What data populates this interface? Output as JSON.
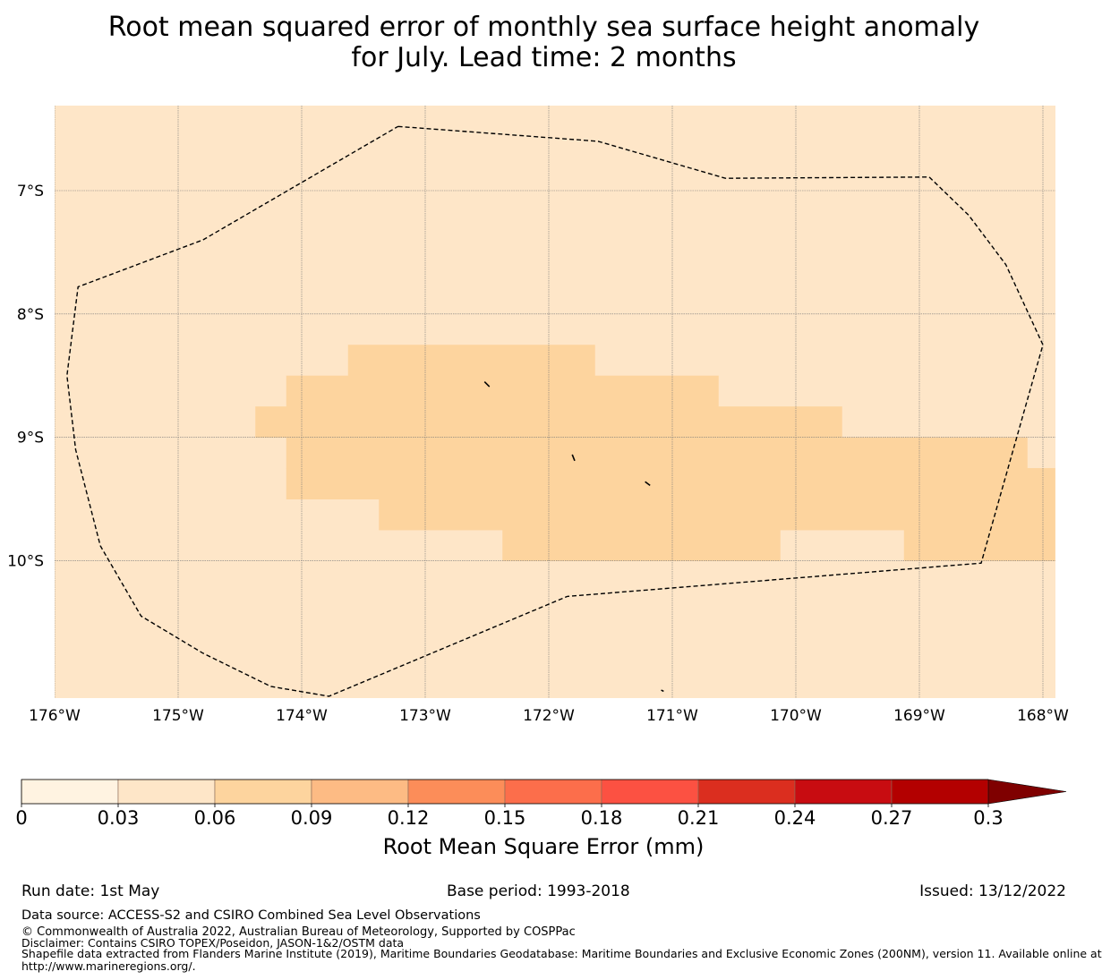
{
  "title": {
    "line1": "Root mean squared error of monthly sea surface height anomaly",
    "line2": "for July. Lead time: 2 months"
  },
  "map": {
    "lon_range": [
      -176,
      -167.9
    ],
    "lat_range": [
      -11.15,
      -6.3
    ],
    "x_ticks": [
      {
        "value": -176,
        "label": "176°W"
      },
      {
        "value": -175,
        "label": "175°W"
      },
      {
        "value": -174,
        "label": "174°W"
      },
      {
        "value": -173,
        "label": "173°W"
      },
      {
        "value": -172,
        "label": "172°W"
      },
      {
        "value": -171,
        "label": "171°W"
      },
      {
        "value": -170,
        "label": "170°W"
      },
      {
        "value": -169,
        "label": "169°W"
      },
      {
        "value": -168,
        "label": "168°W"
      }
    ],
    "y_ticks": [
      {
        "value": -7,
        "label": "7°S"
      },
      {
        "value": -8,
        "label": "8°S"
      },
      {
        "value": -9,
        "label": "9°S"
      },
      {
        "value": -10,
        "label": "10°S"
      }
    ],
    "background_color": "#fee6c8",
    "band_color": "#fdd49e",
    "cell_size_deg": 0.25,
    "band_rows": [
      {
        "lat_top": -8.25,
        "lat_bottom": -8.5,
        "lon_from": -173.625,
        "lon_to": -171.625
      },
      {
        "lat_top": -8.5,
        "lat_bottom": -8.75,
        "lon_from": -174.125,
        "lon_to": -170.625
      },
      {
        "lat_top": -8.75,
        "lat_bottom": -9.0,
        "lon_from": -174.375,
        "lon_to": -169.625
      },
      {
        "lat_top": -9.0,
        "lat_bottom": -9.25,
        "lon_from": -174.125,
        "lon_to": -168.125
      },
      {
        "lat_top": -9.25,
        "lat_bottom": -9.5,
        "lon_from": -174.125,
        "lon_to": -167.9
      },
      {
        "lat_top": -9.5,
        "lat_bottom": -9.75,
        "lon_from": -173.375,
        "lon_to": -167.9
      },
      {
        "lat_top": -9.75,
        "lat_bottom": -10.0,
        "lon_from": -172.375,
        "lon_to": -170.125
      },
      {
        "lat_top": -9.75,
        "lat_bottom": -10.0,
        "lon_from": -169.125,
        "lon_to": -167.9
      }
    ],
    "eez_boundary": [
      [
        -173.22,
        -6.48
      ],
      [
        -171.6,
        -6.6
      ],
      [
        -170.57,
        -6.9
      ],
      [
        -168.92,
        -6.89
      ],
      [
        -168.6,
        -7.2
      ],
      [
        -168.3,
        -7.6
      ],
      [
        -168.0,
        -8.25
      ],
      [
        -168.5,
        -10.02
      ],
      [
        -171.85,
        -10.29
      ],
      [
        -173.78,
        -11.1
      ],
      [
        -174.25,
        -11.02
      ],
      [
        -174.8,
        -10.75
      ],
      [
        -175.3,
        -10.45
      ],
      [
        -175.63,
        -9.88
      ],
      [
        -175.83,
        -9.1
      ],
      [
        -175.9,
        -8.5
      ],
      [
        -175.81,
        -7.78
      ],
      [
        -174.8,
        -7.4
      ],
      [
        -173.22,
        -6.48
      ]
    ],
    "islands": [
      [
        [
          -172.52,
          -8.55
        ],
        [
          -172.48,
          -8.59
        ]
      ],
      [
        [
          -171.81,
          -9.14
        ],
        [
          -171.79,
          -9.19
        ]
      ],
      [
        [
          -171.22,
          -9.36
        ],
        [
          -171.18,
          -9.39
        ]
      ],
      [
        [
          -171.09,
          -11.05
        ],
        [
          -171.07,
          -11.06
        ]
      ]
    ]
  },
  "colorbar": {
    "label": "Root Mean Square Error (mm)",
    "boundaries": [
      0,
      0.03,
      0.06,
      0.09,
      0.12,
      0.15,
      0.18,
      0.21,
      0.24,
      0.27,
      0.3
    ],
    "tick_labels": [
      "0",
      "0.03",
      "0.06",
      "0.09",
      "0.12",
      "0.15",
      "0.18",
      "0.21",
      "0.24",
      "0.27",
      "0.3"
    ],
    "colors": [
      "#fff3e1",
      "#fee6c8",
      "#fdd49e",
      "#fdbb84",
      "#fc8d59",
      "#fc6e4b",
      "#fc5142",
      "#db2e1f",
      "#c80c11",
      "#b30000",
      "#7f0000"
    ]
  },
  "footer": {
    "run_date": "Run date: 1st May",
    "base_period": "Base period: 1993-2018",
    "issued": "Issued: 13/12/2022",
    "data_source": "Data source: ACCESS-S2 and CSIRO Combined Sea Level Observations",
    "copyright": "© Commonwealth of Australia 2022, Australian Bureau of Meteorology, Supported by COSPPac",
    "disclaimer": "Disclaimer: Contains CSIRO TOPEX/Poseidon, JASON-1&2/OSTM data",
    "shapefile_line1": "Shapefile data extracted from Flanders Marine Institute (2019), Maritime Boundaries Geodatabase: Maritime Boundaries and Exclusive Economic Zones (200NM), version 11. Available online at",
    "shapefile_line2": "http://www.marineregions.org/."
  }
}
